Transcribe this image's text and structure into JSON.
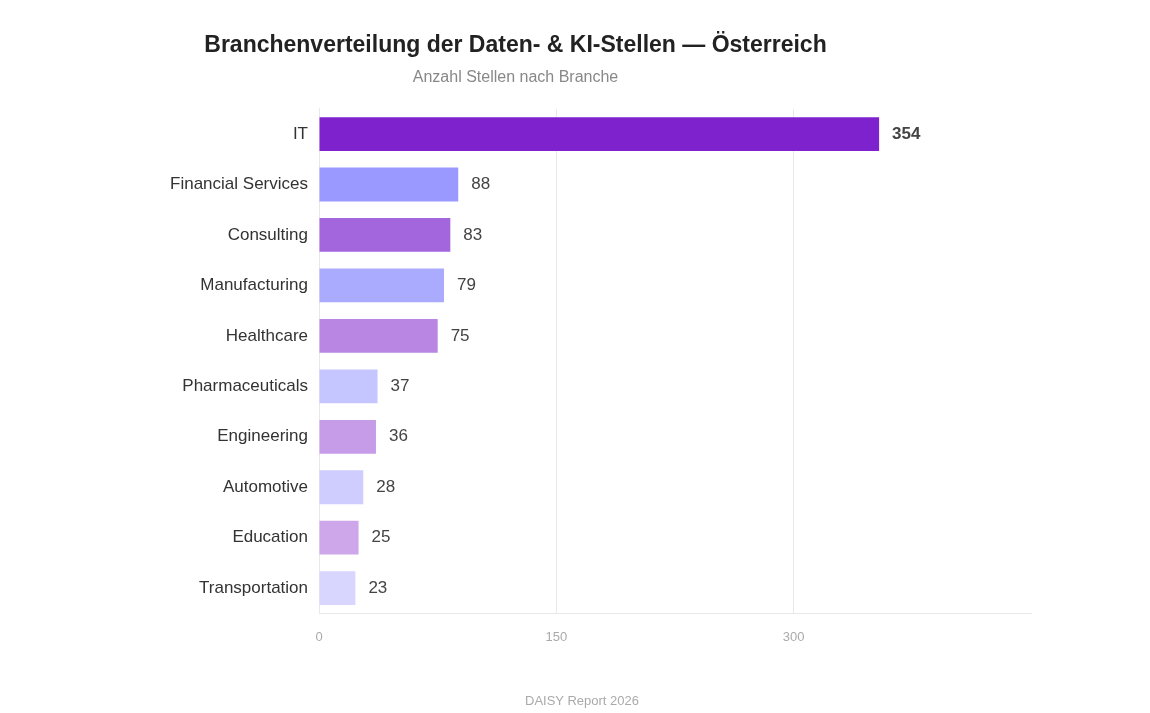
{
  "chart_data": {
    "type": "bar",
    "orientation": "horizontal",
    "title": "Branchenverteilung der Daten- & KI-Stellen — Österreich",
    "subtitle": "Anzahl Stellen nach Branche",
    "categories": [
      "IT",
      "Financial Services",
      "Consulting",
      "Manufacturing",
      "Healthcare",
      "Pharmaceuticals",
      "Engineering",
      "Automotive",
      "Education",
      "Transportation"
    ],
    "values": [
      354,
      88,
      83,
      79,
      75,
      37,
      36,
      28,
      25,
      23
    ],
    "colors": [
      "#7e22ce",
      "#9999ff",
      "#a366dd",
      "#aaaaff",
      "#b986e3",
      "#c5c5ff",
      "#c69ce8",
      "#cfcdfe",
      "#cea7ea",
      "#d8d6ff"
    ],
    "xlim": [
      0,
      450
    ],
    "xticks": [
      0,
      150,
      300
    ],
    "grid": "x",
    "data_labels": true,
    "legend": false,
    "annotations": [
      "DAISY Report 2026"
    ]
  }
}
